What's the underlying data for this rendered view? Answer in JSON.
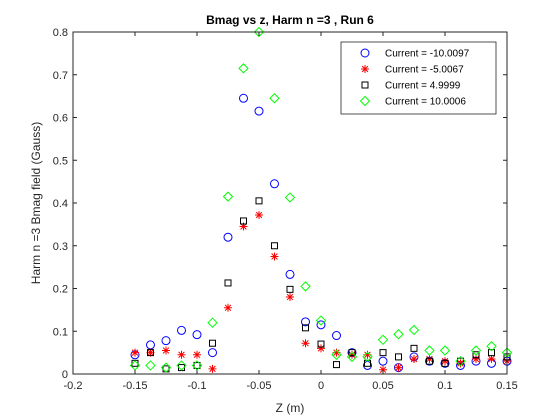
{
  "chart_data": {
    "type": "scatter",
    "title": "Bmag vs z, Harm n =3 , Run 6",
    "xlabel": "Z (m)",
    "ylabel": "Harm n =3 Bmag field (Gauss)",
    "xlim": [
      -0.2,
      0.15
    ],
    "ylim": [
      0,
      0.8
    ],
    "xticks": [
      -0.2,
      -0.15,
      -0.1,
      -0.05,
      0,
      0.05,
      0.1,
      0.15
    ],
    "yticks": [
      0,
      0.1,
      0.2,
      0.3,
      0.4,
      0.5,
      0.6,
      0.7,
      0.8
    ],
    "xtick_labels": [
      "-0.2",
      "-0.15",
      "-0.1",
      "-0.05",
      "0",
      "0.05",
      "0.1",
      "0.15"
    ],
    "ytick_labels": [
      "0",
      "0.1",
      "0.2",
      "0.3",
      "0.4",
      "0.5",
      "0.6",
      "0.7",
      "0.8"
    ],
    "grid": false,
    "legend_position": "top-right",
    "series": [
      {
        "name": "Current = -10.0097",
        "marker": "circle",
        "color": "#0000ff",
        "x": [
          -0.15,
          -0.1375,
          -0.125,
          -0.1125,
          -0.1,
          -0.0875,
          -0.075,
          -0.0625,
          -0.05,
          -0.0375,
          -0.025,
          -0.0125,
          0,
          0.0125,
          0.025,
          0.0375,
          0.05,
          0.0625,
          0.075,
          0.0875,
          0.1,
          0.1125,
          0.125,
          0.1375,
          0.15
        ],
        "y": [
          0.045,
          0.068,
          0.078,
          0.102,
          0.092,
          0.05,
          0.32,
          0.645,
          0.615,
          0.445,
          0.233,
          0.122,
          0.115,
          0.09,
          0.05,
          0.02,
          0.03,
          0.015,
          0.04,
          0.03,
          0.025,
          0.02,
          0.03,
          0.025,
          0.03
        ]
      },
      {
        "name": "Current = -5.0067",
        "marker": "asterisk",
        "color": "#ff0000",
        "x": [
          -0.15,
          -0.1375,
          -0.125,
          -0.1125,
          -0.1,
          -0.0875,
          -0.075,
          -0.0625,
          -0.05,
          -0.0375,
          -0.025,
          -0.0125,
          0,
          0.0125,
          0.025,
          0.0375,
          0.05,
          0.0625,
          0.075,
          0.0875,
          0.1,
          0.1125,
          0.125,
          0.1375,
          0.15
        ],
        "y": [
          0.05,
          0.05,
          0.055,
          0.045,
          0.045,
          0.012,
          0.155,
          0.345,
          0.372,
          0.275,
          0.18,
          0.072,
          0.06,
          0.05,
          0.045,
          0.045,
          0.01,
          0.015,
          0.035,
          0.035,
          0.03,
          0.025,
          0.035,
          0.035,
          0.03
        ]
      },
      {
        "name": "Current = 4.9999",
        "marker": "square",
        "color": "#000000",
        "x": [
          -0.15,
          -0.1375,
          -0.125,
          -0.1125,
          -0.1,
          -0.0875,
          -0.075,
          -0.0625,
          -0.05,
          -0.0375,
          -0.025,
          -0.0125,
          0,
          0.0125,
          0.025,
          0.0375,
          0.05,
          0.0625,
          0.075,
          0.0875,
          0.1,
          0.1125,
          0.125,
          0.1375,
          0.15
        ],
        "y": [
          0.025,
          0.05,
          0.012,
          0.015,
          0.02,
          0.072,
          0.213,
          0.358,
          0.405,
          0.3,
          0.198,
          0.108,
          0.07,
          0.022,
          0.05,
          0.025,
          0.05,
          0.04,
          0.06,
          0.03,
          0.025,
          0.03,
          0.045,
          0.05,
          0.04
        ]
      },
      {
        "name": "Current = 10.0006",
        "marker": "diamond",
        "color": "#00ff00",
        "x": [
          -0.15,
          -0.1375,
          -0.125,
          -0.1125,
          -0.1,
          -0.0875,
          -0.075,
          -0.0625,
          -0.05,
          -0.0375,
          -0.025,
          -0.0125,
          0,
          0.0125,
          0.025,
          0.0375,
          0.05,
          0.0625,
          0.075,
          0.0875,
          0.1,
          0.1125,
          0.125,
          0.1375,
          0.15
        ],
        "y": [
          0.02,
          0.02,
          0.015,
          0.02,
          0.02,
          0.12,
          0.415,
          0.715,
          0.8,
          0.645,
          0.413,
          0.205,
          0.125,
          0.045,
          0.04,
          0.04,
          0.08,
          0.093,
          0.103,
          0.055,
          0.055,
          0.03,
          0.055,
          0.065,
          0.05
        ]
      }
    ]
  }
}
